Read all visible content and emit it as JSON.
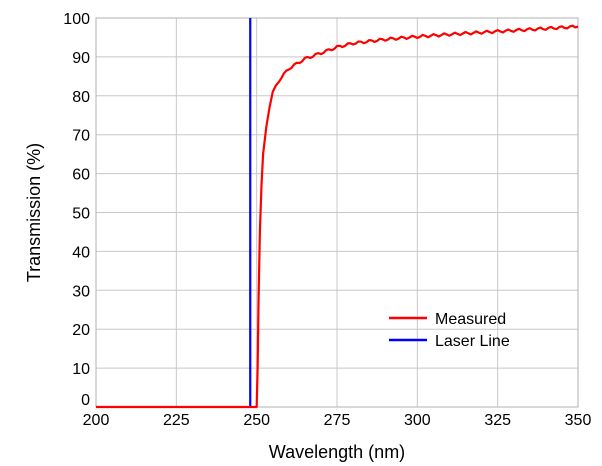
{
  "chart_data": {
    "type": "line",
    "title": "",
    "xlabel": "Wavelength (nm)",
    "ylabel": "Transmission (%)",
    "xlim": [
      200,
      350
    ],
    "ylim": [
      0,
      100
    ],
    "xticks": [
      200,
      225,
      250,
      275,
      300,
      325,
      350
    ],
    "yticks": [
      0,
      10,
      20,
      30,
      40,
      50,
      60,
      70,
      80,
      90,
      100
    ],
    "grid": true,
    "legend_position": "lower-right",
    "series": [
      {
        "name": "Measured",
        "color": "#ff0000",
        "x": [
          200,
          225,
          249,
          250,
          250.3,
          250.6,
          251,
          251.5,
          252,
          253,
          254,
          255,
          257,
          260,
          265,
          270,
          275,
          280,
          290,
          300,
          310,
          320,
          330,
          340,
          350
        ],
        "y": [
          0,
          0,
          0,
          0,
          10,
          28,
          45,
          57,
          65,
          72,
          77,
          81,
          84,
          87,
          89.5,
          91,
          92.5,
          93.5,
          94.5,
          95.2,
          95.8,
          96.3,
          96.8,
          97.3,
          97.8
        ]
      },
      {
        "name": "Laser Line",
        "color": "#0000ff",
        "x": [
          248,
          248
        ],
        "y": [
          0,
          100
        ]
      }
    ]
  }
}
